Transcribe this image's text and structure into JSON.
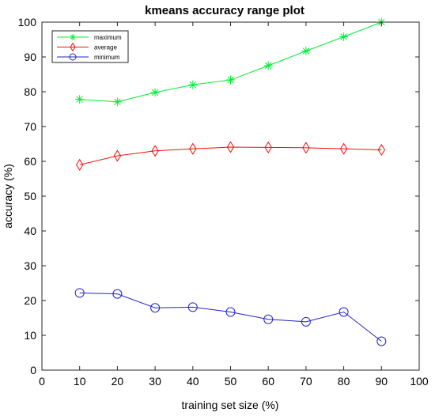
{
  "chart_data": {
    "type": "line",
    "title": "kmeans accuracy range plot",
    "xlabel": "training set size (%)",
    "ylabel": "accuracy (%)",
    "xlim": [
      0,
      100
    ],
    "ylim": [
      0,
      100
    ],
    "xticks": [
      "0",
      "10",
      "20",
      "30",
      "40",
      "50",
      "60",
      "70",
      "80",
      "90",
      "100"
    ],
    "yticks": [
      "0",
      "10",
      "20",
      "30",
      "40",
      "50",
      "60",
      "70",
      "80",
      "90",
      "100"
    ],
    "grid": false,
    "legend_position": "top-left",
    "x": [
      10,
      20,
      30,
      40,
      50,
      60,
      70,
      80,
      90
    ],
    "series": [
      {
        "name": "maximum",
        "color": "#00ee33",
        "marker": "asterisk",
        "values": [
          77.8,
          77.1,
          79.8,
          82.0,
          83.4,
          87.5,
          91.7,
          95.8,
          100.0
        ]
      },
      {
        "name": "average",
        "color": "#ee1111",
        "marker": "diamond",
        "values": [
          59.0,
          61.6,
          63.0,
          63.6,
          64.1,
          64.0,
          63.9,
          63.6,
          63.3
        ]
      },
      {
        "name": "minimum",
        "color": "#2222cc",
        "marker": "circle",
        "values": [
          22.2,
          21.9,
          17.9,
          18.1,
          16.7,
          14.6,
          13.9,
          16.7,
          8.3
        ]
      }
    ]
  }
}
